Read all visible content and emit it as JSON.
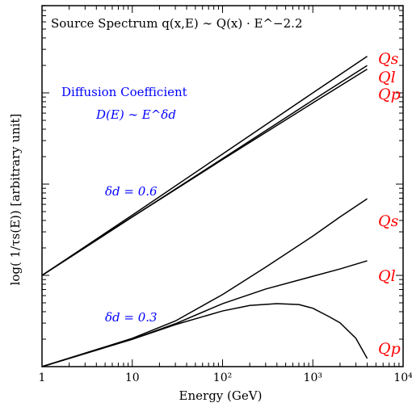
{
  "chart_data": {
    "type": "line",
    "title": "Source Spectrum q(x,E) ∼ Q(x) · E^−2.2",
    "xlabel": "Energy (GeV)",
    "ylabel": "log( 1/τs(E))    [arbitrary unit]",
    "x_scale": "log",
    "xlim": [
      1,
      10000
    ],
    "x_ticks": [
      1,
      10,
      100,
      1000,
      10000
    ],
    "x_tick_labels": [
      "1",
      "10",
      "10²",
      "10³",
      "10⁴"
    ],
    "y_scale": "log",
    "y_units": "arbitrary",
    "grid": false,
    "annotations": {
      "diffusion_title": "Diffusion Coefficient",
      "diffusion_formula": "D(E) ∼ E^δd",
      "delta_06": "δd = 0.6",
      "delta_03": "δd = 0.3"
    },
    "groups": [
      {
        "label": "δd = 0.6",
        "series": [
          {
            "name": "Qs",
            "points": [
              [
                1,
                1.0
              ],
              [
                10,
                1.66
              ],
              [
                100,
                2.33
              ],
              [
                1000,
                3.0
              ],
              [
                4000,
                3.4
              ]
            ]
          },
          {
            "name": "Ql",
            "points": [
              [
                1,
                1.0
              ],
              [
                10,
                1.64
              ],
              [
                100,
                2.28
              ],
              [
                1000,
                2.92
              ],
              [
                4000,
                3.3
              ]
            ]
          },
          {
            "name": "Qp",
            "points": [
              [
                1,
                1.0
              ],
              [
                10,
                1.64
              ],
              [
                100,
                2.27
              ],
              [
                1000,
                2.89
              ],
              [
                4000,
                3.26
              ]
            ]
          }
        ]
      },
      {
        "label": "δd = 0.3",
        "series": [
          {
            "name": "Qs",
            "points": [
              [
                1,
                0.0
              ],
              [
                10,
                0.31
              ],
              [
                30,
                0.5
              ],
              [
                100,
                0.79
              ],
              [
                300,
                1.09
              ],
              [
                1000,
                1.43
              ],
              [
                2000,
                1.64
              ],
              [
                4000,
                1.84
              ]
            ]
          },
          {
            "name": "Ql",
            "points": [
              [
                1,
                0.0
              ],
              [
                10,
                0.3
              ],
              [
                30,
                0.47
              ],
              [
                100,
                0.69
              ],
              [
                300,
                0.85
              ],
              [
                1000,
                0.99
              ],
              [
                2000,
                1.07
              ],
              [
                4000,
                1.16
              ]
            ]
          },
          {
            "name": "Qp",
            "points": [
              [
                1,
                0.0
              ],
              [
                10,
                0.3
              ],
              [
                30,
                0.46
              ],
              [
                100,
                0.61
              ],
              [
                200,
                0.67
              ],
              [
                400,
                0.69
              ],
              [
                700,
                0.68
              ],
              [
                1000,
                0.64
              ],
              [
                1500,
                0.55
              ],
              [
                2000,
                0.48
              ],
              [
                3000,
                0.31
              ],
              [
                4000,
                0.09
              ]
            ]
          }
        ]
      }
    ],
    "colors": {
      "curves": "#000000",
      "series_labels": "#ff0000",
      "annotations": "#0000ff",
      "axes": "#000000"
    }
  }
}
